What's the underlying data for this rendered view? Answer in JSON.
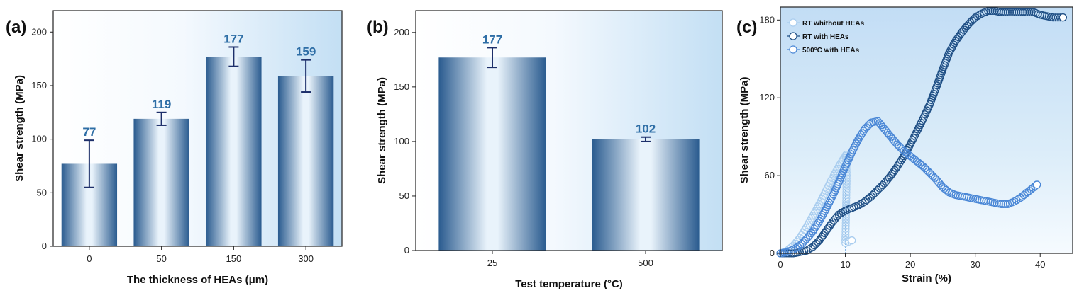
{
  "chart_data": [
    {
      "panel_label": "(a)",
      "type": "bar",
      "categories": [
        "0",
        "50",
        "150",
        "300"
      ],
      "values": [
        77,
        119,
        177,
        159
      ],
      "errors": [
        22,
        6,
        9,
        15
      ],
      "value_labels": [
        "77",
        "119",
        "177",
        "159"
      ],
      "xlabel": "The thickness of HEAs (μm)",
      "ylabel": "Shear strength (MPa)",
      "ylim": [
        0,
        220
      ],
      "yticks": [
        0,
        50,
        100,
        150,
        200
      ],
      "ytick_labels": [
        "0",
        "50",
        "100",
        "150",
        "200"
      ]
    },
    {
      "panel_label": "(b)",
      "type": "bar",
      "categories": [
        "25",
        "500"
      ],
      "values": [
        177,
        102
      ],
      "errors": [
        9,
        2
      ],
      "value_labels": [
        "177",
        "102"
      ],
      "xlabel": "Test temperature (°C)",
      "ylabel": "Shear strength (MPa)",
      "ylim": [
        0,
        220
      ],
      "yticks": [
        0,
        50,
        100,
        150,
        200
      ],
      "ytick_labels": [
        "0",
        "50",
        "100",
        "150",
        "200"
      ]
    },
    {
      "panel_label": "(c)",
      "type": "scatter",
      "xlabel": "Strain (%)",
      "ylabel": "Shear strength (MPa)",
      "xlim": [
        0,
        45
      ],
      "ylim": [
        0,
        190
      ],
      "xticks": [
        0,
        10,
        20,
        30,
        40
      ],
      "xtick_labels": [
        "0",
        "10",
        "20",
        "30",
        "40"
      ],
      "yticks": [
        0,
        60,
        120,
        180
      ],
      "ytick_labels": [
        "0",
        "60",
        "120",
        "180"
      ],
      "legend_position": "top-left",
      "series": [
        {
          "name": "RT whithout HEAs",
          "color": "#a9cdef",
          "x": [
            0,
            1,
            2,
            3,
            4,
            5,
            6,
            7,
            8,
            9,
            9.6,
            10,
            10.1,
            10.2,
            10.1,
            10.0,
            10.5,
            11.0
          ],
          "y": [
            0,
            2,
            6,
            12,
            20,
            29,
            38,
            48,
            58,
            67,
            72,
            75,
            76,
            60,
            30,
            8,
            9,
            10
          ]
        },
        {
          "name": "RT with HEAs",
          "color": "#1f4f85",
          "x": [
            0,
            2,
            3,
            4,
            5,
            6,
            7,
            8,
            9,
            10,
            11,
            12,
            13,
            14,
            15,
            16,
            17,
            18,
            19,
            20,
            21,
            22,
            23,
            24,
            25,
            26,
            27,
            28,
            29,
            30,
            31,
            32,
            33,
            34,
            35,
            36,
            37,
            38,
            39,
            40,
            41,
            42,
            43.5
          ],
          "y": [
            0,
            0,
            1,
            2,
            5,
            10,
            17,
            24,
            30,
            33,
            35,
            37,
            40,
            44,
            49,
            54,
            60,
            67,
            75,
            84,
            94,
            104,
            115,
            128,
            142,
            155,
            164,
            171,
            177,
            182,
            185,
            187,
            187,
            186,
            186,
            186,
            186,
            186,
            186,
            184,
            183,
            182,
            182
          ]
        },
        {
          "name": "500°C with HEAs",
          "color": "#4a87d6",
          "x": [
            0,
            1,
            2,
            3,
            4,
            5,
            6,
            7,
            8,
            9,
            10,
            11,
            12,
            13,
            14,
            15,
            16,
            17,
            18,
            19,
            20,
            21,
            22,
            23,
            24,
            25,
            26,
            27,
            28,
            29,
            30,
            31,
            32,
            33,
            34,
            35,
            36,
            37,
            38,
            39.5
          ],
          "y": [
            0,
            1,
            3,
            6,
            11,
            17,
            25,
            34,
            44,
            55,
            67,
            78,
            88,
            96,
            101,
            102,
            96,
            90,
            84,
            79,
            75,
            71,
            67,
            62,
            57,
            51,
            47,
            45,
            44,
            43,
            42,
            41,
            40,
            39,
            38,
            38,
            40,
            43,
            47,
            53
          ]
        }
      ]
    }
  ]
}
